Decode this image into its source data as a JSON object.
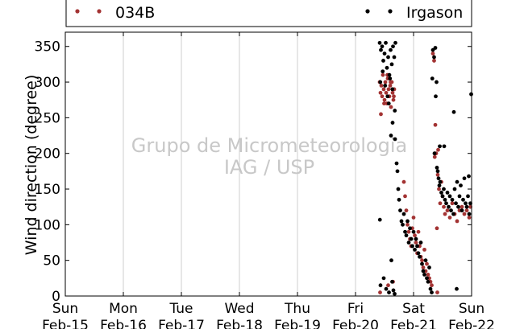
{
  "chart_data": {
    "type": "scatter",
    "ylabel": "Wind direction (degree)",
    "ylim": [
      0,
      370
    ],
    "yticks": [
      0,
      50,
      100,
      150,
      200,
      250,
      300,
      350
    ],
    "xlim": [
      "2015-02-15",
      "2015-02-22"
    ],
    "xticks": [
      {
        "day": "Sun",
        "date": "Feb-15"
      },
      {
        "day": "Mon",
        "date": "Feb-16"
      },
      {
        "day": "Tue",
        "date": "Feb-17"
      },
      {
        "day": "Wed",
        "date": "Feb-18"
      },
      {
        "day": "Thu",
        "date": "Feb-19"
      },
      {
        "day": "Fri",
        "date": "Feb-20"
      },
      {
        "day": "Sat",
        "date": "Feb-21"
      },
      {
        "day": "Sun",
        "date": "Feb-22"
      }
    ],
    "grid": "vertical",
    "legend_placement": "top",
    "watermark": [
      "Grupo de Micrometeorologia",
      "IAG / USP"
    ],
    "series": [
      {
        "name": "034B",
        "color": "#a33333",
        "points": [
          [
            "2015-02-20 10:00",
            300
          ],
          [
            "2015-02-20 10:20",
            285
          ],
          [
            "2015-02-20 10:40",
            295
          ],
          [
            "2015-02-20 11:00",
            280
          ],
          [
            "2015-02-20 11:20",
            310
          ],
          [
            "2015-02-20 11:40",
            290
          ],
          [
            "2015-02-20 12:00",
            275
          ],
          [
            "2015-02-20 12:20",
            300
          ],
          [
            "2015-02-20 12:40",
            285
          ],
          [
            "2015-02-20 13:00",
            270
          ],
          [
            "2015-02-20 13:20",
            305
          ],
          [
            "2015-02-20 13:40",
            290
          ],
          [
            "2015-02-20 14:00",
            280
          ],
          [
            "2015-02-20 14:20",
            295
          ],
          [
            "2015-02-20 14:40",
            265
          ],
          [
            "2015-02-20 15:00",
            300
          ],
          [
            "2015-02-20 15:20",
            285
          ],
          [
            "2015-02-20 15:40",
            275
          ],
          [
            "2015-02-20 16:00",
            290
          ],
          [
            "2015-02-20 10:30",
            255
          ],
          [
            "2015-02-20 11:50",
            270
          ],
          [
            "2015-02-20 13:10",
            310
          ],
          [
            "2015-02-20 14:30",
            300
          ],
          [
            "2015-02-20 15:50",
            280
          ],
          [
            "2015-02-20 10:10",
            5
          ],
          [
            "2015-02-20 13:30",
            15
          ],
          [
            "2015-02-20 15:30",
            20
          ],
          [
            "2015-02-20 20:00",
            160
          ],
          [
            "2015-02-20 20:30",
            140
          ],
          [
            "2015-02-20 21:00",
            120
          ],
          [
            "2015-02-20 21:30",
            100
          ],
          [
            "2015-02-20 22:00",
            90
          ],
          [
            "2015-02-20 22:30",
            80
          ],
          [
            "2015-02-20 23:00",
            70
          ],
          [
            "2015-02-20 23:30",
            95
          ],
          [
            "2015-02-21 00:00",
            110
          ],
          [
            "2015-02-21 00:30",
            85
          ],
          [
            "2015-02-21 01:00",
            75
          ],
          [
            "2015-02-21 01:30",
            60
          ],
          [
            "2015-02-21 02:00",
            90
          ],
          [
            "2015-02-21 02:30",
            70
          ],
          [
            "2015-02-21 03:00",
            55
          ],
          [
            "2015-02-21 03:30",
            50
          ],
          [
            "2015-02-21 04:00",
            40
          ],
          [
            "2015-02-21 04:30",
            65
          ],
          [
            "2015-02-21 05:00",
            35
          ],
          [
            "2015-02-21 05:30",
            45
          ],
          [
            "2015-02-21 06:00",
            30
          ],
          [
            "2015-02-21 06:30",
            25
          ],
          [
            "2015-02-21 07:00",
            20
          ],
          [
            "2015-02-21 07:30",
            15
          ],
          [
            "2015-02-21 08:00",
            340
          ],
          [
            "2015-02-21 08:30",
            330
          ],
          [
            "2015-02-21 08:45",
            195
          ],
          [
            "2015-02-21 09:00",
            240
          ],
          [
            "2015-02-21 09:20",
            200
          ],
          [
            "2015-02-21 09:40",
            95
          ],
          [
            "2015-02-21 10:00",
            170
          ],
          [
            "2015-02-21 10:30",
            150
          ],
          [
            "2015-02-21 11:00",
            130
          ],
          [
            "2015-02-21 11:30",
            160
          ],
          [
            "2015-02-21 12:00",
            140
          ],
          [
            "2015-02-21 12:30",
            125
          ],
          [
            "2015-02-21 13:00",
            115
          ],
          [
            "2015-02-21 14:00",
            120
          ],
          [
            "2015-02-21 15:00",
            110
          ],
          [
            "2015-02-21 16:00",
            130
          ],
          [
            "2015-02-21 17:00",
            115
          ],
          [
            "2015-02-21 18:00",
            105
          ],
          [
            "2015-02-21 19:00",
            120
          ],
          [
            "2015-02-21 20:00",
            125
          ],
          [
            "2015-02-21 21:00",
            115
          ],
          [
            "2015-02-21 22:00",
            120
          ],
          [
            "2015-02-21 23:00",
            110
          ],
          [
            "2015-02-21 23:30",
            125
          ],
          [
            "2015-02-21 09:50",
            5
          ],
          [
            "2015-02-21 10:10",
            205
          ]
        ]
      },
      {
        "name": "Irgason",
        "color": "#000000",
        "points": [
          [
            "2015-02-20 10:00",
            355
          ],
          [
            "2015-02-20 10:30",
            345
          ],
          [
            "2015-02-20 11:00",
            350
          ],
          [
            "2015-02-20 11:30",
            330
          ],
          [
            "2015-02-20 12:00",
            340
          ],
          [
            "2015-02-20 12:30",
            355
          ],
          [
            "2015-02-20 13:00",
            320
          ],
          [
            "2015-02-20 13:30",
            335
          ],
          [
            "2015-02-20 14:00",
            310
          ],
          [
            "2015-02-20 14:30",
            345
          ],
          [
            "2015-02-20 15:00",
            325
          ],
          [
            "2015-02-20 15:30",
            350
          ],
          [
            "2015-02-20 16:00",
            335
          ],
          [
            "2015-02-20 16:30",
            355
          ],
          [
            "2015-02-20 10:15",
            300
          ],
          [
            "2015-02-20 11:15",
            315
          ],
          [
            "2015-02-20 12:15",
            295
          ],
          [
            "2015-02-20 13:15",
            280
          ],
          [
            "2015-02-20 14:15",
            305
          ],
          [
            "2015-02-20 15:15",
            290
          ],
          [
            "2015-02-20 16:15",
            260
          ],
          [
            "2015-02-20 13:45",
            270
          ],
          [
            "2015-02-20 10:05",
            107
          ],
          [
            "2015-02-20 10:20",
            15
          ],
          [
            "2015-02-20 11:40",
            25
          ],
          [
            "2015-02-20 12:40",
            10
          ],
          [
            "2015-02-20 13:50",
            5
          ],
          [
            "2015-02-20 14:50",
            50
          ],
          [
            "2015-02-20 15:10",
            20
          ],
          [
            "2015-02-20 15:40",
            8
          ],
          [
            "2015-02-20 16:10",
            3
          ],
          [
            "2015-02-20 14:40",
            225
          ],
          [
            "2015-02-20 15:20",
            243
          ],
          [
            "2015-02-20 16:20",
            220
          ],
          [
            "2015-02-20 17:00",
            186
          ],
          [
            "2015-02-20 17:20",
            175
          ],
          [
            "2015-02-20 17:40",
            150
          ],
          [
            "2015-02-20 18:00",
            135
          ],
          [
            "2015-02-20 18:30",
            120
          ],
          [
            "2015-02-20 19:00",
            105
          ],
          [
            "2015-02-20 19:30",
            100
          ],
          [
            "2015-02-20 20:00",
            115
          ],
          [
            "2015-02-20 20:30",
            90
          ],
          [
            "2015-02-20 21:00",
            85
          ],
          [
            "2015-02-20 21:30",
            105
          ],
          [
            "2015-02-20 22:00",
            75
          ],
          [
            "2015-02-20 22:30",
            95
          ],
          [
            "2015-02-20 23:00",
            80
          ],
          [
            "2015-02-20 23:30",
            70
          ],
          [
            "2015-02-21 00:00",
            90
          ],
          [
            "2015-02-21 00:30",
            65
          ],
          [
            "2015-02-21 01:00",
            80
          ],
          [
            "2015-02-21 01:30",
            70
          ],
          [
            "2015-02-21 02:00",
            60
          ],
          [
            "2015-02-21 02:30",
            55
          ],
          [
            "2015-02-21 03:00",
            75
          ],
          [
            "2015-02-21 03:30",
            45
          ],
          [
            "2015-02-21 04:00",
            35
          ],
          [
            "2015-02-21 04:30",
            30
          ],
          [
            "2015-02-21 05:00",
            50
          ],
          [
            "2015-02-21 05:30",
            25
          ],
          [
            "2015-02-21 06:00",
            20
          ],
          [
            "2015-02-21 06:30",
            40
          ],
          [
            "2015-02-21 07:00",
            10
          ],
          [
            "2015-02-21 07:30",
            5
          ],
          [
            "2015-02-21 08:00",
            345
          ],
          [
            "2015-02-21 08:30",
            335
          ],
          [
            "2015-02-21 09:00",
            348
          ],
          [
            "2015-02-21 09:30",
            300
          ],
          [
            "2015-02-21 07:45",
            305
          ],
          [
            "2015-02-21 09:10",
            280
          ],
          [
            "2015-02-21 08:40",
            200
          ],
          [
            "2015-02-21 09:40",
            180
          ],
          [
            "2015-02-21 10:00",
            175
          ],
          [
            "2015-02-21 10:20",
            165
          ],
          [
            "2015-02-21 10:40",
            155
          ],
          [
            "2015-02-21 11:00",
            160
          ],
          [
            "2015-02-21 11:30",
            145
          ],
          [
            "2015-02-21 12:00",
            140
          ],
          [
            "2015-02-21 12:30",
            150
          ],
          [
            "2015-02-21 13:00",
            135
          ],
          [
            "2015-02-21 13:30",
            130
          ],
          [
            "2015-02-21 14:00",
            145
          ],
          [
            "2015-02-21 14:30",
            125
          ],
          [
            "2015-02-21 15:00",
            140
          ],
          [
            "2015-02-21 15:30",
            120
          ],
          [
            "2015-02-21 16:00",
            135
          ],
          [
            "2015-02-21 16:30",
            115
          ],
          [
            "2015-02-21 17:00",
            150
          ],
          [
            "2015-02-21 17:30",
            130
          ],
          [
            "2015-02-21 18:00",
            160
          ],
          [
            "2015-02-21 18:30",
            125
          ],
          [
            "2015-02-21 19:00",
            140
          ],
          [
            "2015-02-21 19:30",
            155
          ],
          [
            "2015-02-21 20:00",
            120
          ],
          [
            "2015-02-21 20:30",
            135
          ],
          [
            "2015-02-21 21:00",
            165
          ],
          [
            "2015-02-21 21:30",
            130
          ],
          [
            "2015-02-21 22:00",
            125
          ],
          [
            "2015-02-21 22:30",
            140
          ],
          [
            "2015-02-21 23:00",
            115
          ],
          [
            "2015-02-21 23:30",
            130
          ],
          [
            "2015-02-21 12:40",
            210
          ],
          [
            "2015-02-21 16:40",
            258
          ],
          [
            "2015-02-21 17:50",
            10
          ],
          [
            "2015-02-21 23:50",
            283
          ],
          [
            "2015-02-21 22:50",
            168
          ],
          [
            "2015-02-21 10:50",
            210
          ]
        ]
      }
    ]
  }
}
